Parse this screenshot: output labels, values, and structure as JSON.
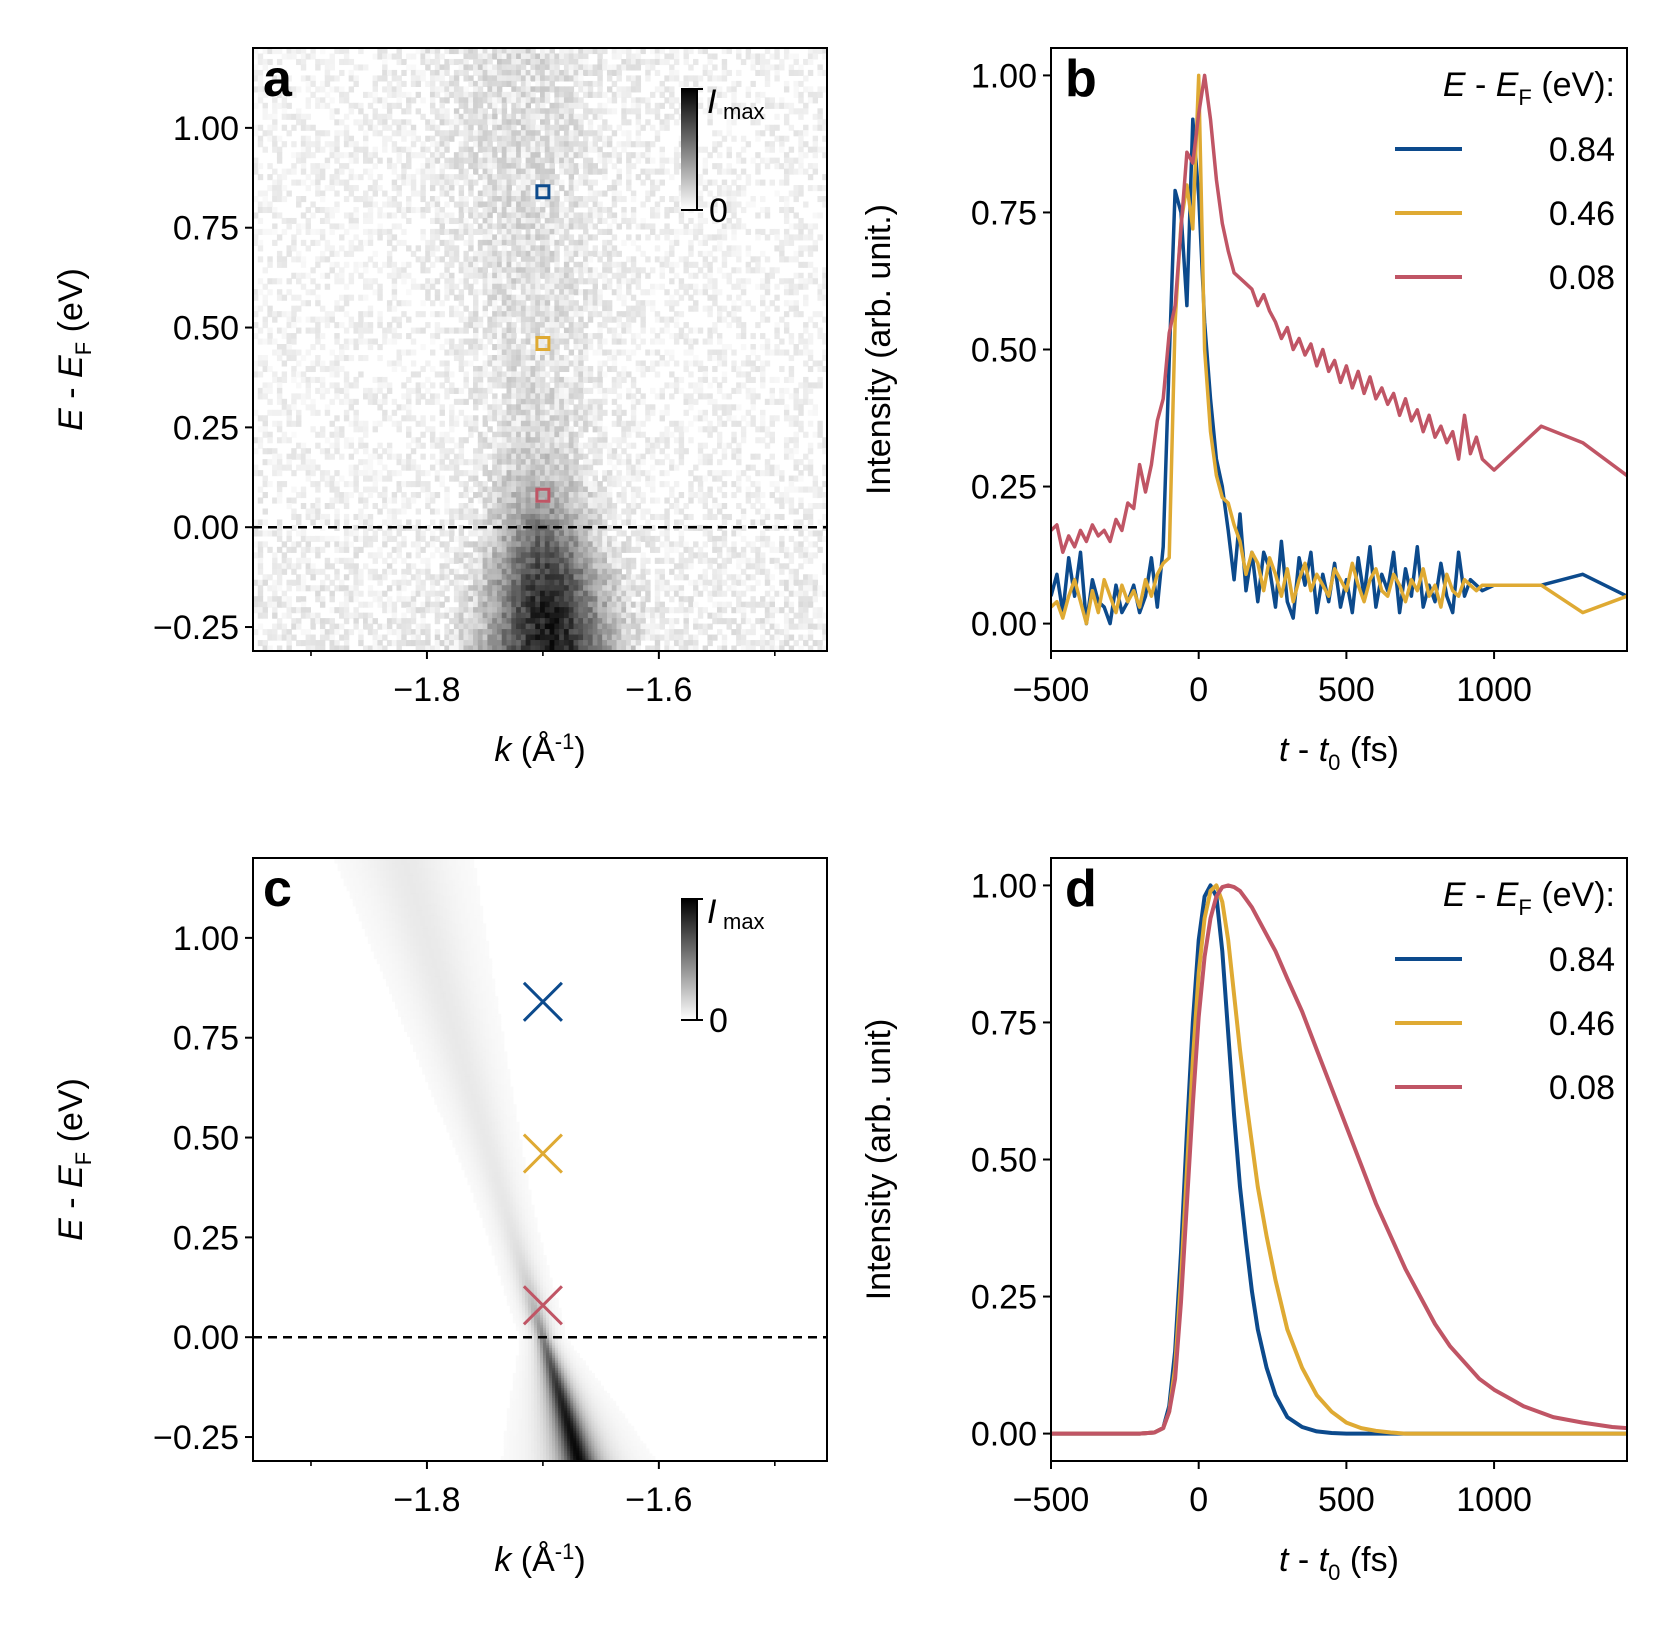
{
  "colors": {
    "blue": "#0c4a8c",
    "yellow": "#dfaa33",
    "red": "#c05565",
    "axis": "#000000",
    "dashed": "#000000"
  },
  "chart_data": [
    {
      "id": "a",
      "panel_label": "a",
      "type": "heatmap",
      "title": "",
      "xlabel": "k (Å⁻¹)",
      "ylabel": "E - E_F (eV)",
      "xlim": [
        -1.95,
        -1.455
      ],
      "ylim": [
        -0.31,
        1.2
      ],
      "xticks": [
        -1.8,
        -1.6
      ],
      "xtick_labels": [
        "−1.8",
        "−1.6"
      ],
      "xminorticks": [
        -1.9,
        -1.7,
        -1.5
      ],
      "yticks": [
        1.0,
        0.75,
        0.5,
        0.25,
        0.0,
        -0.25
      ],
      "ytick_labels": [
        "1.00",
        "0.75",
        "0.50",
        "0.25",
        "0.00",
        "−0.25"
      ],
      "fermi_level_line": 0.0,
      "colorbar": {
        "top_label": "I",
        "top_label_sub": "max",
        "bottom_label": "0",
        "cmap": "Greys"
      },
      "band": {
        "k_at_fermi": -1.7,
        "dk_dE": -0.02,
        "min_width": 0.04,
        "width_growth": 0.04
      },
      "markers": [
        {
          "k": -1.7,
          "E": 0.84,
          "color": "blue",
          "shape": "square"
        },
        {
          "k": -1.7,
          "E": 0.46,
          "color": "yellow",
          "shape": "square"
        },
        {
          "k": -1.7,
          "E": 0.08,
          "color": "red",
          "shape": "square"
        }
      ]
    },
    {
      "id": "b",
      "panel_label": "b",
      "type": "line",
      "xlabel": "t - t₀ (fs)",
      "ylabel": "Intensity (arb. unit.)",
      "xlim": [
        -500,
        1450
      ],
      "ylim": [
        -0.05,
        1.05
      ],
      "xticks": [
        -500,
        0,
        500,
        1000
      ],
      "xtick_labels": [
        "−500",
        "0",
        "500",
        "1000"
      ],
      "yticks": [
        0.0,
        0.25,
        0.5,
        0.75,
        1.0
      ],
      "ytick_labels": [
        "0.00",
        "0.25",
        "0.50",
        "0.75",
        "1.00"
      ],
      "legend_title": "E - E_F (eV):",
      "legend_position": "top-right",
      "x": [
        -500,
        -480,
        -460,
        -440,
        -420,
        -400,
        -380,
        -360,
        -340,
        -320,
        -300,
        -280,
        -260,
        -240,
        -220,
        -200,
        -180,
        -160,
        -140,
        -120,
        -100,
        -80,
        -60,
        -40,
        -20,
        0,
        20,
        40,
        60,
        80,
        100,
        120,
        140,
        160,
        180,
        200,
        220,
        240,
        260,
        280,
        300,
        320,
        340,
        360,
        380,
        400,
        420,
        440,
        460,
        480,
        500,
        520,
        540,
        560,
        580,
        600,
        620,
        640,
        660,
        680,
        700,
        720,
        740,
        760,
        780,
        800,
        820,
        840,
        860,
        880,
        900,
        920,
        940,
        960,
        1000,
        1160,
        1300,
        1450
      ],
      "series": [
        {
          "name": "0.84",
          "color": "blue",
          "values": [
            0.05,
            0.09,
            0.02,
            0.12,
            0.05,
            0.13,
            0.0,
            0.08,
            0.04,
            0.03,
            0.0,
            0.07,
            0.02,
            0.04,
            0.07,
            0.02,
            0.05,
            0.12,
            0.03,
            0.14,
            0.48,
            0.79,
            0.75,
            0.58,
            0.92,
            0.78,
            0.55,
            0.41,
            0.3,
            0.25,
            0.17,
            0.08,
            0.2,
            0.06,
            0.13,
            0.04,
            0.13,
            0.1,
            0.03,
            0.15,
            0.04,
            0.01,
            0.12,
            0.07,
            0.13,
            0.02,
            0.09,
            0.04,
            0.11,
            0.03,
            0.08,
            0.02,
            0.12,
            0.05,
            0.14,
            0.03,
            0.09,
            0.06,
            0.13,
            0.02,
            0.1,
            0.05,
            0.14,
            0.03,
            0.07,
            0.04,
            0.11,
            0.05,
            0.02,
            0.13,
            0.05,
            0.08,
            0.07,
            0.06,
            0.07,
            0.07,
            0.09,
            0.05
          ]
        },
        {
          "name": "0.46",
          "color": "yellow",
          "values": [
            0.03,
            0.04,
            0.01,
            0.05,
            0.08,
            0.04,
            0.0,
            0.06,
            0.02,
            0.08,
            0.05,
            0.02,
            0.07,
            0.04,
            0.06,
            0.03,
            0.08,
            0.05,
            0.09,
            0.11,
            0.12,
            0.55,
            0.73,
            0.8,
            0.72,
            1.0,
            0.5,
            0.35,
            0.27,
            0.23,
            0.22,
            0.18,
            0.15,
            0.09,
            0.13,
            0.11,
            0.06,
            0.12,
            0.09,
            0.05,
            0.1,
            0.04,
            0.08,
            0.11,
            0.06,
            0.09,
            0.07,
            0.05,
            0.1,
            0.08,
            0.06,
            0.11,
            0.07,
            0.04,
            0.08,
            0.1,
            0.06,
            0.05,
            0.09,
            0.07,
            0.04,
            0.08,
            0.06,
            0.1,
            0.05,
            0.07,
            0.03,
            0.09,
            0.06,
            0.05,
            0.08,
            0.07,
            0.06,
            0.07,
            0.07,
            0.07,
            0.02,
            0.05
          ]
        },
        {
          "name": "0.08",
          "color": "red",
          "values": [
            0.17,
            0.18,
            0.13,
            0.16,
            0.14,
            0.17,
            0.15,
            0.18,
            0.16,
            0.17,
            0.15,
            0.19,
            0.17,
            0.22,
            0.21,
            0.29,
            0.24,
            0.29,
            0.37,
            0.41,
            0.53,
            0.58,
            0.72,
            0.86,
            0.84,
            0.93,
            1.0,
            0.92,
            0.81,
            0.73,
            0.68,
            0.64,
            0.63,
            0.62,
            0.61,
            0.58,
            0.6,
            0.57,
            0.55,
            0.52,
            0.54,
            0.5,
            0.52,
            0.49,
            0.51,
            0.47,
            0.5,
            0.46,
            0.48,
            0.44,
            0.47,
            0.43,
            0.46,
            0.42,
            0.45,
            0.41,
            0.43,
            0.4,
            0.42,
            0.38,
            0.41,
            0.37,
            0.39,
            0.35,
            0.38,
            0.34,
            0.36,
            0.33,
            0.35,
            0.3,
            0.38,
            0.31,
            0.34,
            0.3,
            0.28,
            0.36,
            0.33,
            0.27
          ]
        }
      ]
    },
    {
      "id": "c",
      "panel_label": "c",
      "type": "heatmap",
      "xlabel": "k (Å⁻¹)",
      "ylabel": "E - E_F (eV)",
      "xlim": [
        -1.95,
        -1.455
      ],
      "ylim": [
        -0.31,
        1.2
      ],
      "xticks": [
        -1.8,
        -1.6
      ],
      "xtick_labels": [
        "−1.8",
        "−1.6"
      ],
      "xminorticks": [
        -1.9,
        -1.7,
        -1.5
      ],
      "yticks": [
        1.0,
        0.75,
        0.5,
        0.25,
        0.0,
        -0.25
      ],
      "ytick_labels": [
        "1.00",
        "0.75",
        "0.50",
        "0.25",
        "0.00",
        "−0.25"
      ],
      "fermi_level_line": 0.0,
      "colorbar": {
        "top_label": "I",
        "top_label_sub": "max",
        "bottom_label": "0",
        "cmap": "Greys"
      },
      "band": {
        "k_at_fermi": -1.7,
        "dk_dE": -0.1,
        "min_width": 0.006,
        "width_growth": 0.03
      },
      "markers": [
        {
          "k": -1.7,
          "E": 0.84,
          "color": "blue",
          "shape": "cross"
        },
        {
          "k": -1.7,
          "E": 0.46,
          "color": "yellow",
          "shape": "cross"
        },
        {
          "k": -1.7,
          "E": 0.08,
          "color": "red",
          "shape": "cross"
        }
      ]
    },
    {
      "id": "d",
      "panel_label": "d",
      "type": "line",
      "xlabel": "t - t₀ (fs)",
      "ylabel": "Intensity (arb. unit)",
      "xlim": [
        -500,
        1450
      ],
      "ylim": [
        -0.05,
        1.05
      ],
      "xticks": [
        -500,
        0,
        500,
        1000
      ],
      "xtick_labels": [
        "−500",
        "0",
        "500",
        "1000"
      ],
      "yticks": [
        0.0,
        0.25,
        0.5,
        0.75,
        1.0
      ],
      "ytick_labels": [
        "0.00",
        "0.25",
        "0.50",
        "0.75",
        "1.00"
      ],
      "legend_title": "E - E_F (eV):",
      "legend_position": "top-right",
      "x": [
        -500,
        -200,
        -150,
        -120,
        -100,
        -80,
        -60,
        -40,
        -20,
        0,
        20,
        40,
        60,
        80,
        100,
        120,
        140,
        160,
        180,
        200,
        230,
        260,
        300,
        350,
        400,
        450,
        500,
        550,
        600,
        650,
        700,
        750,
        800,
        850,
        900,
        950,
        1000,
        1100,
        1200,
        1300,
        1400,
        1450
      ],
      "series": [
        {
          "name": "0.84",
          "color": "blue",
          "values": [
            0,
            0,
            0.002,
            0.01,
            0.05,
            0.15,
            0.33,
            0.55,
            0.75,
            0.9,
            0.98,
            1.0,
            0.98,
            0.88,
            0.73,
            0.58,
            0.45,
            0.35,
            0.26,
            0.19,
            0.12,
            0.07,
            0.03,
            0.012,
            0.004,
            0.001,
            0,
            0,
            0,
            0,
            0,
            0,
            0,
            0,
            0,
            0,
            0,
            0,
            0,
            0,
            0,
            0
          ]
        },
        {
          "name": "0.46",
          "color": "yellow",
          "values": [
            0,
            0,
            0.002,
            0.01,
            0.04,
            0.12,
            0.28,
            0.48,
            0.68,
            0.84,
            0.94,
            0.99,
            1.0,
            0.97,
            0.9,
            0.8,
            0.7,
            0.61,
            0.53,
            0.45,
            0.36,
            0.28,
            0.19,
            0.12,
            0.07,
            0.04,
            0.02,
            0.01,
            0.005,
            0.002,
            0,
            0,
            0,
            0,
            0,
            0,
            0,
            0,
            0,
            0,
            0,
            0
          ]
        },
        {
          "name": "0.08",
          "color": "red",
          "values": [
            0,
            0,
            0.002,
            0.01,
            0.04,
            0.1,
            0.24,
            0.42,
            0.6,
            0.76,
            0.87,
            0.94,
            0.98,
            0.997,
            1.0,
            0.997,
            0.99,
            0.975,
            0.96,
            0.94,
            0.91,
            0.88,
            0.83,
            0.77,
            0.7,
            0.63,
            0.56,
            0.49,
            0.42,
            0.36,
            0.3,
            0.25,
            0.2,
            0.16,
            0.13,
            0.1,
            0.08,
            0.05,
            0.03,
            0.02,
            0.012,
            0.01
          ]
        }
      ]
    }
  ]
}
